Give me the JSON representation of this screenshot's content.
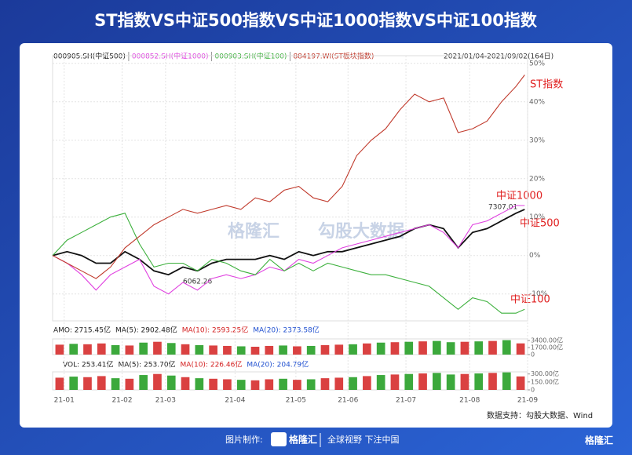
{
  "title": "ST指数VS中证500指数VS中证1000指数VS中证100指数",
  "date_range": "2021/01/04-2021/09/02(164日)",
  "source": "数据支持：勾股大数据、Wind",
  "footer": {
    "made_by": "图片制作:",
    "brand": "格隆汇",
    "slogan": "全球视野 下注中国",
    "corner_brand": "格隆汇"
  },
  "watermark": {
    "brand": "格隆汇",
    "data": "勾股大数据"
  },
  "amo_header": [
    "AMO: 2715.45亿",
    "MA(5): 2902.48亿",
    "MA(10): 2593.25亿",
    "MA(20): 2373.58亿"
  ],
  "vol_header": [
    "VOL: 253.41亿",
    "MA(5): 253.70亿",
    "MA(10): 226.46亿",
    "MA(20): 204.79亿"
  ],
  "chart_data": [
    {
      "type": "line",
      "x": [
        0,
        5,
        10,
        15,
        20,
        25,
        30,
        35,
        40,
        45,
        50,
        55,
        60,
        65,
        70,
        75,
        80,
        85,
        90,
        95,
        100,
        105,
        110,
        115,
        120,
        125,
        130,
        135,
        140,
        145,
        150,
        155,
        160,
        163
      ],
      "xlim": [
        0,
        164
      ],
      "xticks": [
        {
          "value": 4,
          "label": "21-01"
        },
        {
          "value": 24,
          "label": "21-02"
        },
        {
          "value": 39,
          "label": "21-03"
        },
        {
          "value": 63,
          "label": "21-04"
        },
        {
          "value": 84,
          "label": "21-05"
        },
        {
          "value": 102,
          "label": "21-06"
        },
        {
          "value": 122,
          "label": "21-07"
        },
        {
          "value": 144,
          "label": "21-08"
        },
        {
          "value": 164,
          "label": "21-09"
        }
      ],
      "ylim": [
        -17,
        52
      ],
      "yticks": [
        {
          "value": -10,
          "label": "-10%"
        },
        {
          "value": 0,
          "label": "0%"
        },
        {
          "value": 10,
          "label": "10%"
        },
        {
          "value": 20,
          "label": "20%"
        },
        {
          "value": 30,
          "label": "30%"
        },
        {
          "value": 40,
          "label": "40%"
        },
        {
          "value": 50,
          "label": "50%"
        }
      ],
      "grid": true,
      "series": [
        {
          "name": "000905.SH(中证500)",
          "color": "#111111",
          "values": [
            0,
            1,
            0,
            -2,
            -2,
            1,
            -1,
            -4,
            -5,
            -3,
            -4,
            -2,
            -1,
            -1,
            -1,
            0,
            -1,
            1,
            0,
            1,
            1,
            2,
            3,
            4,
            5,
            7,
            8,
            7,
            2,
            6,
            7,
            9,
            11,
            12
          ]
        },
        {
          "name": "000852.SH(中证1000)",
          "color": "#e040e0",
          "values": [
            0,
            -2,
            -5,
            -9,
            -5,
            -3,
            -1,
            -8,
            -10,
            -7,
            -9,
            -6,
            -5,
            -6,
            -5,
            -3,
            -4,
            -1,
            -2,
            0,
            2,
            3,
            4,
            5,
            6,
            7,
            8,
            6,
            2,
            8,
            9,
            11,
            13,
            13
          ]
        },
        {
          "name": "000903.SH(中证100)",
          "color": "#3cb03c",
          "values": [
            0,
            4,
            6,
            8,
            10,
            11,
            3,
            -3,
            -2,
            -2,
            -4,
            -1,
            -2,
            -4,
            -5,
            -1,
            -4,
            -2,
            -4,
            -2,
            -3,
            -4,
            -5,
            -5,
            -6,
            -7,
            -8,
            -11,
            -14,
            -11,
            -12,
            -15,
            -15,
            -14
          ]
        },
        {
          "name": "884197.WI(ST板块指数)",
          "color": "#c0392b",
          "values": [
            0,
            -2,
            -4,
            -6,
            -3,
            2,
            5,
            8,
            10,
            12,
            11,
            12,
            13,
            12,
            15,
            14,
            17,
            18,
            15,
            14,
            18,
            26,
            30,
            33,
            38,
            42,
            40,
            41,
            32,
            33,
            35,
            40,
            44,
            47
          ]
        }
      ],
      "annotations": [
        "ST指数",
        "中证1000",
        "中证500",
        "中证100",
        "7307.01",
        "6062.26"
      ]
    },
    {
      "type": "bar",
      "values": [
        2400,
        2600,
        2500,
        2700,
        2300,
        2200,
        2900,
        3100,
        2800,
        2500,
        2300,
        2200,
        2100,
        2000,
        1900,
        2100,
        2200,
        2000,
        2100,
        2300,
        2400,
        2500,
        2700,
        2900,
        3000,
        3100,
        3200,
        3300,
        3000,
        3100,
        3200,
        3300,
        3500,
        2715.45
      ],
      "colors": [
        "#d42020",
        "#1a9a1a",
        "#d42020",
        "#d42020",
        "#1a9a1a",
        "#d42020",
        "#1a9a1a",
        "#d42020",
        "#1a9a1a",
        "#d42020",
        "#1a9a1a",
        "#d42020",
        "#d42020",
        "#1a9a1a",
        "#d42020",
        "#d42020",
        "#1a9a1a",
        "#d42020",
        "#1a9a1a",
        "#d42020",
        "#d42020",
        "#1a9a1a",
        "#d42020",
        "#1a9a1a",
        "#d42020",
        "#1a9a1a",
        "#d42020",
        "#1a9a1a",
        "#1a9a1a",
        "#d42020",
        "#1a9a1a",
        "#d42020",
        "#1a9a1a",
        "#d42020"
      ],
      "ylim": [
        0,
        3800
      ],
      "yticks": [
        0,
        {
          "value": 1700,
          "label": "1700.00亿"
        },
        {
          "value": 3400,
          "label": "3400.00亿"
        }
      ]
    },
    {
      "type": "bar",
      "values": [
        230,
        250,
        240,
        260,
        220,
        210,
        280,
        300,
        270,
        240,
        220,
        210,
        200,
        190,
        180,
        200,
        210,
        190,
        200,
        220,
        230,
        240,
        260,
        280,
        290,
        300,
        310,
        320,
        290,
        300,
        310,
        320,
        330,
        253.41
      ],
      "colors": [
        "#d42020",
        "#1a9a1a",
        "#d42020",
        "#d42020",
        "#1a9a1a",
        "#d42020",
        "#1a9a1a",
        "#d42020",
        "#1a9a1a",
        "#d42020",
        "#1a9a1a",
        "#d42020",
        "#d42020",
        "#1a9a1a",
        "#d42020",
        "#d42020",
        "#1a9a1a",
        "#d42020",
        "#1a9a1a",
        "#d42020",
        "#d42020",
        "#1a9a1a",
        "#d42020",
        "#1a9a1a",
        "#d42020",
        "#1a9a1a",
        "#d42020",
        "#1a9a1a",
        "#1a9a1a",
        "#d42020",
        "#1a9a1a",
        "#d42020",
        "#1a9a1a",
        "#d42020"
      ],
      "ylim": [
        0,
        340
      ],
      "yticks": [
        0,
        {
          "value": 150,
          "label": "150.00亿"
        },
        {
          "value": 300,
          "label": "300.00亿"
        }
      ]
    }
  ]
}
